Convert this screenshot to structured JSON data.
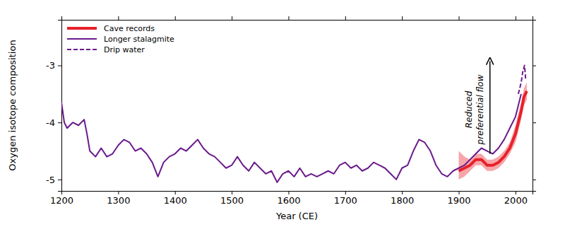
{
  "chart_data": {
    "type": "line",
    "x_label": "Year (CE)",
    "y_label": "Oxygen isotope composition",
    "xlim": [
      1200,
      2030
    ],
    "ylim": [
      -5.2,
      -2.2
    ],
    "xticks": [
      1200,
      1300,
      1400,
      1500,
      1600,
      1700,
      1800,
      1900,
      2000
    ],
    "yticks": [
      -5,
      -4,
      -3
    ],
    "grid": false,
    "legend": "upper left",
    "series": [
      {
        "name": "Cave records",
        "color": "#e8202a",
        "line_style": "solid",
        "x": [
          1900,
          1910,
          1920,
          1930,
          1940,
          1950,
          1960,
          1970,
          1980,
          1990,
          2000,
          2005,
          2010,
          2015,
          2020
        ],
        "values": [
          -4.85,
          -4.8,
          -4.75,
          -4.65,
          -4.65,
          -4.75,
          -4.75,
          -4.7,
          -4.6,
          -4.45,
          -4.2,
          -4.0,
          -3.8,
          -3.55,
          -3.45
        ],
        "lower": [
          -5.0,
          -4.95,
          -4.85,
          -4.75,
          -4.75,
          -4.85,
          -4.85,
          -4.8,
          -4.7,
          -4.55,
          -4.35,
          -4.15,
          -3.95,
          -3.7,
          -3.6
        ],
        "upper": [
          -4.5,
          -4.6,
          -4.65,
          -4.55,
          -4.55,
          -4.65,
          -4.65,
          -4.6,
          -4.5,
          -4.35,
          -4.05,
          -3.85,
          -3.65,
          -3.4,
          -3.3
        ]
      },
      {
        "name": "Longer stalagmite",
        "color": "#6a1a8c",
        "line_style": "solid",
        "x": [
          1200,
          1205,
          1210,
          1220,
          1230,
          1240,
          1245,
          1250,
          1260,
          1270,
          1280,
          1290,
          1300,
          1310,
          1320,
          1330,
          1340,
          1350,
          1360,
          1370,
          1380,
          1390,
          1400,
          1410,
          1420,
          1430,
          1440,
          1450,
          1460,
          1470,
          1480,
          1490,
          1500,
          1510,
          1520,
          1530,
          1540,
          1550,
          1560,
          1570,
          1580,
          1590,
          1600,
          1610,
          1620,
          1630,
          1640,
          1650,
          1660,
          1670,
          1680,
          1690,
          1700,
          1710,
          1720,
          1730,
          1740,
          1750,
          1760,
          1770,
          1780,
          1790,
          1800,
          1810,
          1820,
          1830,
          1840,
          1850,
          1860,
          1870,
          1880,
          1890,
          1900,
          1910,
          1920,
          1930,
          1940,
          1950,
          1960,
          1970,
          1980,
          1990,
          2000,
          2005,
          2010
        ],
        "values": [
          -3.65,
          -4.0,
          -4.1,
          -4.0,
          -4.05,
          -3.95,
          -4.2,
          -4.5,
          -4.6,
          -4.45,
          -4.6,
          -4.55,
          -4.4,
          -4.3,
          -4.35,
          -4.5,
          -4.45,
          -4.55,
          -4.7,
          -4.95,
          -4.7,
          -4.6,
          -4.55,
          -4.45,
          -4.5,
          -4.4,
          -4.3,
          -4.45,
          -4.55,
          -4.6,
          -4.7,
          -4.8,
          -4.75,
          -4.6,
          -4.75,
          -4.85,
          -4.7,
          -4.8,
          -4.9,
          -4.85,
          -5.05,
          -4.9,
          -4.85,
          -4.95,
          -4.8,
          -4.95,
          -4.9,
          -4.95,
          -4.9,
          -4.85,
          -4.9,
          -4.75,
          -4.7,
          -4.8,
          -4.75,
          -4.85,
          -4.8,
          -4.7,
          -4.75,
          -4.8,
          -4.9,
          -5.0,
          -4.8,
          -4.75,
          -4.5,
          -4.3,
          -4.35,
          -4.5,
          -4.75,
          -4.9,
          -4.95,
          -4.85,
          -4.8,
          -4.75,
          -4.65,
          -4.55,
          -4.45,
          -4.5,
          -4.55,
          -4.45,
          -4.3,
          -4.1,
          -3.9,
          -3.7,
          -3.5
        ]
      },
      {
        "name": "Drip water",
        "color": "#6a1a8c",
        "line_style": "dashed",
        "x": [
          2005,
          2010,
          2013,
          2016,
          2018
        ],
        "values": [
          -3.5,
          -3.3,
          -3.1,
          -3.0,
          -3.25
        ]
      }
    ],
    "annotations": [
      {
        "text": [
          "Reduced",
          "preferential flow"
        ],
        "x": 1955,
        "y": [
          -4.55,
          -2.9
        ]
      }
    ]
  }
}
